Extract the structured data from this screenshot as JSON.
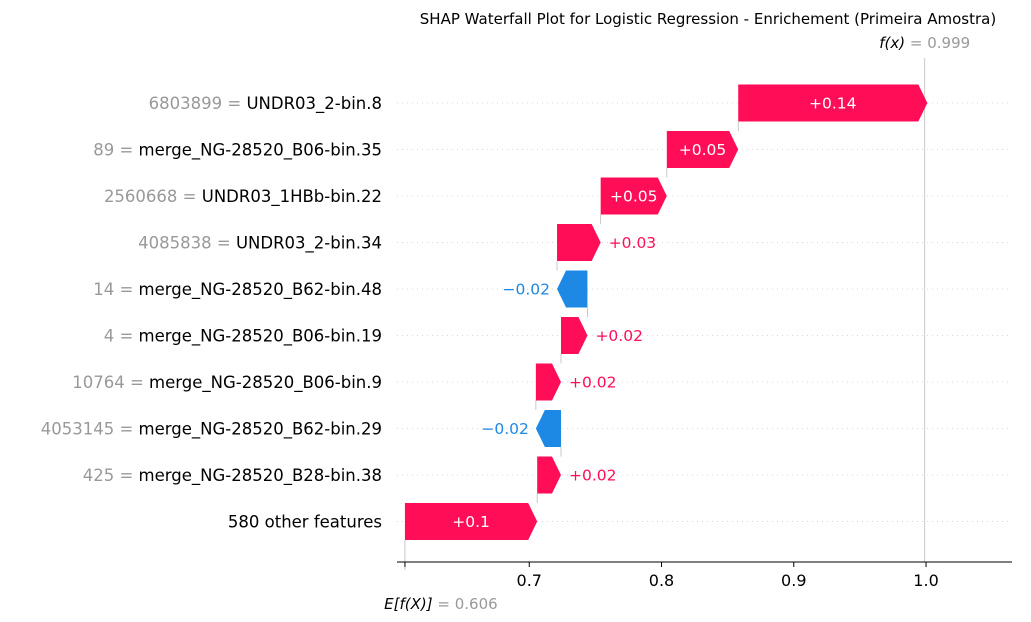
{
  "chart_data": {
    "type": "waterfall",
    "title": "SHAP Waterfall Plot for Logistic Regression - Enrichement (Primeira Amostra)",
    "base_value": 0.606,
    "base_label": {
      "prefix": "E[f(X)]",
      "sep": " = ",
      "value": "0.606"
    },
    "output_value": 0.999,
    "output_label": {
      "prefix": "f(x)",
      "sep": " = ",
      "value": "0.999"
    },
    "xlim": [
      0.6,
      1.065
    ],
    "xticks": [
      0.7,
      0.8,
      0.9,
      1.0
    ],
    "xtick_labels": [
      "0.7",
      "0.8",
      "0.9",
      "1.0"
    ],
    "features": [
      {
        "value": "6803899",
        "name": "UNDR03_2-bin.8",
        "shap": 0.143,
        "label": "+0.14"
      },
      {
        "value": "89",
        "name": "merge_NG-28520_B06-bin.35",
        "shap": 0.054,
        "label": "+0.05"
      },
      {
        "value": "2560668",
        "name": "UNDR03_1HBb-bin.22",
        "shap": 0.05,
        "label": "+0.05"
      },
      {
        "value": "4085838",
        "name": "UNDR03_2-bin.34",
        "shap": 0.033,
        "label": "+0.03"
      },
      {
        "value": "14",
        "name": "merge_NG-28520_B62-bin.48",
        "shap": -0.023,
        "label": "−0.02"
      },
      {
        "value": "4",
        "name": "merge_NG-28520_B06-bin.19",
        "shap": 0.02,
        "label": "+0.02"
      },
      {
        "value": "10764",
        "name": "merge_NG-28520_B06-bin.9",
        "shap": 0.019,
        "label": "+0.02"
      },
      {
        "value": "4053145",
        "name": "merge_NG-28520_B62-bin.29",
        "shap": -0.019,
        "label": "−0.02"
      },
      {
        "value": "425",
        "name": "merge_NG-28520_B28-bin.38",
        "shap": 0.018,
        "label": "+0.02"
      },
      {
        "value": "",
        "name": "580 other features",
        "shap": 0.1,
        "label": "+0.1"
      }
    ],
    "colors": {
      "positive": "#ff0d57",
      "negative": "#1e88e5",
      "base_text": "#999999"
    }
  }
}
